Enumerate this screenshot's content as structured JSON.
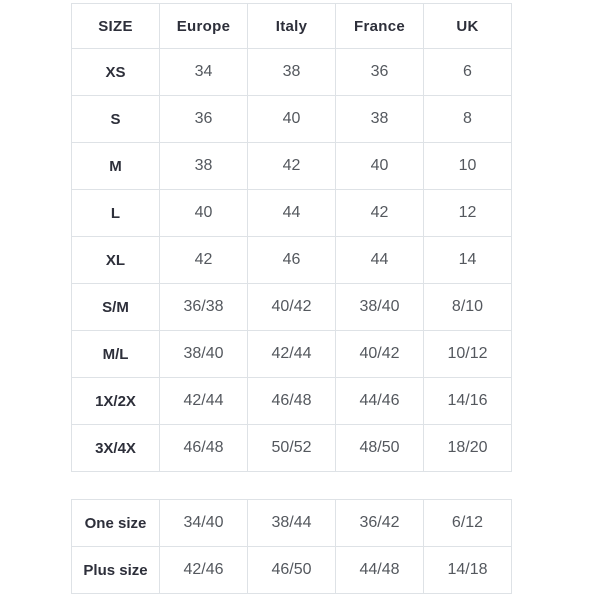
{
  "colors": {
    "page_background": "#ffffff",
    "table_border": "#dee2e6",
    "header_text": "#2d2f3a",
    "label_text": "#2d2f3a",
    "value_text": "#54585e"
  },
  "chart_data": [
    {
      "type": "table",
      "columns": [
        "SIZE",
        "Europe",
        "Italy",
        "France",
        "UK"
      ],
      "rows": [
        {
          "label": "XS",
          "values": [
            "34",
            "38",
            "36",
            "6"
          ]
        },
        {
          "label": "S",
          "values": [
            "36",
            "40",
            "38",
            "8"
          ]
        },
        {
          "label": "M",
          "values": [
            "38",
            "42",
            "40",
            "10"
          ]
        },
        {
          "label": "L",
          "values": [
            "40",
            "44",
            "42",
            "12"
          ]
        },
        {
          "label": "XL",
          "values": [
            "42",
            "46",
            "44",
            "14"
          ]
        },
        {
          "label": "S/M",
          "values": [
            "36/38",
            "40/42",
            "38/40",
            "8/10"
          ]
        },
        {
          "label": "M/L",
          "values": [
            "38/40",
            "42/44",
            "40/42",
            "10/12"
          ]
        },
        {
          "label": "1X/2X",
          "values": [
            "42/44",
            "46/48",
            "44/46",
            "14/16"
          ]
        },
        {
          "label": "3X/4X",
          "values": [
            "46/48",
            "50/52",
            "48/50",
            "18/20"
          ]
        }
      ]
    },
    {
      "type": "table",
      "columns": [],
      "rows": [
        {
          "label": "One size",
          "values": [
            "34/40",
            "38/44",
            "36/42",
            "6/12"
          ]
        },
        {
          "label": "Plus size",
          "values": [
            "42/46",
            "46/50",
            "44/48",
            "14/18"
          ]
        }
      ]
    }
  ]
}
